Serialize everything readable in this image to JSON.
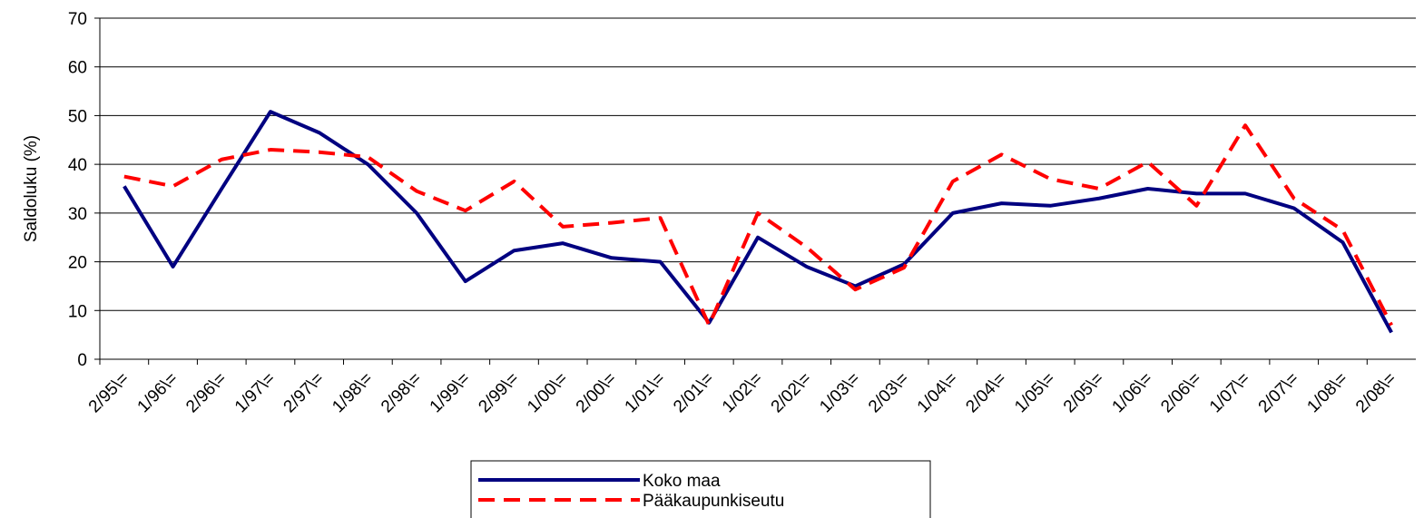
{
  "chart_data": {
    "type": "line",
    "y_label": "Saldoluku (%)",
    "categories": [
      "2/95\\=",
      "1/96\\=",
      "2/96\\=",
      "1/97\\=",
      "2/97\\=",
      "1/98\\=",
      "2/98\\=",
      "1/99\\=",
      "2/99\\=",
      "1/00\\=",
      "2/00\\=",
      "1/01\\=",
      "2/01\\=",
      "1/02\\=",
      "2/02\\=",
      "1/03\\=",
      "2/03\\=",
      "1/04\\=",
      "2/04\\=",
      "1/05\\=",
      "2/05\\=",
      "1/06\\=",
      "2/06\\=",
      "1/07\\=",
      "2/07\\=",
      "1/08\\=",
      "2/08\\="
    ],
    "series": [
      {
        "name": "Koko maa",
        "color": "#000080",
        "dash": false,
        "values": [
          35.5,
          19,
          35,
          50.8,
          46.5,
          40,
          30,
          16,
          22.3,
          23.8,
          20.8,
          20,
          7.5,
          25,
          19,
          15,
          19.5,
          30,
          32,
          31.5,
          33,
          35,
          34,
          34,
          31,
          24,
          5.5
        ]
      },
      {
        "name": "Pääkaupunkiseutu",
        "color": "#ff0000",
        "dash": true,
        "values": [
          37.5,
          35.5,
          41,
          43,
          42.5,
          41.5,
          34.5,
          30.5,
          36.5,
          27.2,
          28,
          29,
          7,
          30,
          23,
          14.3,
          18.8,
          36.5,
          42,
          37,
          35,
          40.5,
          31.5,
          48,
          33,
          26.5,
          7
        ]
      }
    ],
    "ylim": [
      0,
      70
    ],
    "yticks": [
      0,
      10,
      20,
      30,
      40,
      50,
      60,
      70
    ],
    "grid": true
  }
}
